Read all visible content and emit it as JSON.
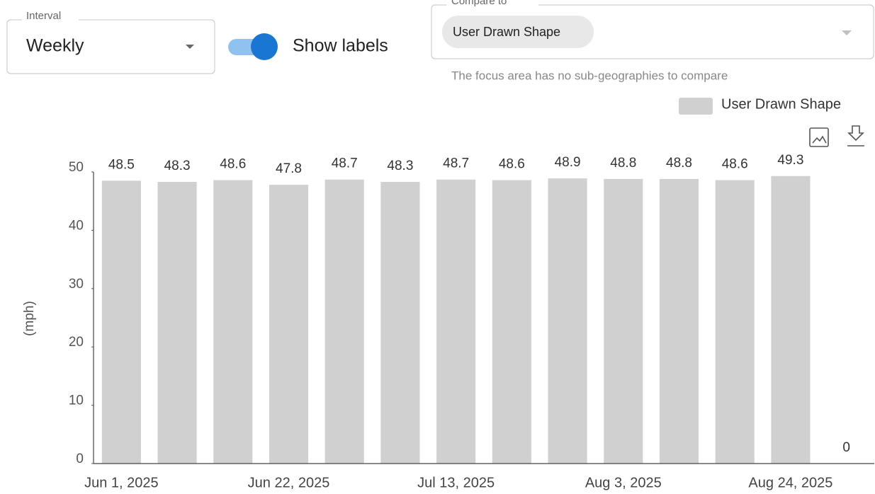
{
  "controls": {
    "interval": {
      "label": "Interval",
      "value": "Weekly"
    },
    "toggle": {
      "label": "Show labels",
      "on": true
    },
    "compare": {
      "label": "Compare to",
      "chip": "User Drawn Shape",
      "hint": "The focus area has no sub-geographies to compare"
    }
  },
  "chart_data": {
    "type": "bar",
    "y_label": "(mph)",
    "categories": [
      "Jun 1, 2025",
      null,
      null,
      "Jun 22, 2025",
      null,
      null,
      "Jul 13, 2025",
      null,
      null,
      "Aug 3, 2025",
      null,
      null,
      "Aug 24, 2025",
      null
    ],
    "series": [
      {
        "name": "User Drawn Shape",
        "color": "#d0d0d0",
        "values": [
          48.5,
          48.3,
          48.6,
          47.8,
          48.7,
          48.3,
          48.7,
          48.6,
          48.9,
          48.8,
          48.8,
          48.6,
          49.3,
          0
        ]
      }
    ],
    "ylim": [
      0,
      50
    ],
    "yticks": [
      0,
      10,
      20,
      30,
      40,
      50
    ]
  }
}
